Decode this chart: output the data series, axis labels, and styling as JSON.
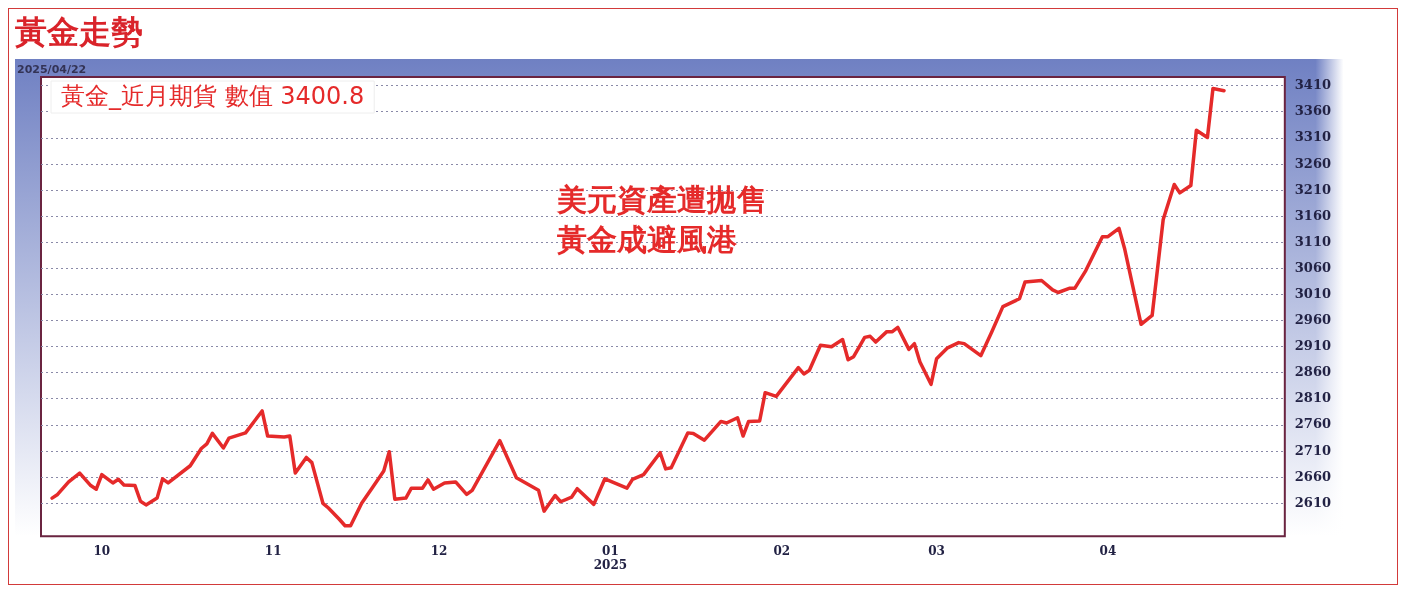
{
  "chart_data": {
    "type": "line",
    "title": "黃金走勢",
    "annotations": [
      "2025/04/22",
      "黃金_近月期貨 數值 3400.8",
      "美元資產遭拋售",
      "黃金成避風港"
    ],
    "x": [
      "2024-09-22",
      "2024-09-23",
      "2024-09-25",
      "2024-09-27",
      "2024-09-29",
      "2024-09-30",
      "2024-10-01",
      "2024-10-03",
      "2024-10-04",
      "2024-10-05",
      "2024-10-07",
      "2024-10-08",
      "2024-10-09",
      "2024-10-11",
      "2024-10-12",
      "2024-10-13",
      "2024-10-17",
      "2024-10-19",
      "2024-10-20",
      "2024-10-21",
      "2024-10-23",
      "2024-10-24",
      "2024-10-27",
      "2024-10-30",
      "2024-10-31",
      "2024-11-03",
      "2024-11-04",
      "2024-11-05",
      "2024-11-07",
      "2024-11-08",
      "2024-11-10",
      "2024-11-11",
      "2024-11-13",
      "2024-11-14",
      "2024-11-15",
      "2024-11-17",
      "2024-11-19",
      "2024-11-21",
      "2024-11-22",
      "2024-11-23",
      "2024-11-25",
      "2024-11-26",
      "2024-11-28",
      "2024-11-29",
      "2024-11-30",
      "2024-12-02",
      "2024-12-04",
      "2024-12-06",
      "2024-12-07",
      "2024-12-12",
      "2024-12-15",
      "2024-12-19",
      "2024-12-20",
      "2024-12-22",
      "2024-12-23",
      "2024-12-25",
      "2024-12-26",
      "2024-12-29",
      "2024-12-31",
      "2025-01-04",
      "2025-01-05",
      "2025-01-07",
      "2025-01-10",
      "2025-01-11",
      "2025-01-12",
      "2025-01-15",
      "2025-01-16",
      "2025-01-18",
      "2025-01-20",
      "2025-01-21",
      "2025-01-22",
      "2025-01-24",
      "2025-01-25",
      "2025-01-26",
      "2025-01-28",
      "2025-01-29",
      "2025-01-31",
      "2025-02-04",
      "2025-02-05",
      "2025-02-06",
      "2025-02-08",
      "2025-02-10",
      "2025-02-12",
      "2025-02-13",
      "2025-02-14",
      "2025-02-16",
      "2025-02-17",
      "2025-02-18",
      "2025-02-20",
      "2025-02-21",
      "2025-02-22",
      "2025-02-24",
      "2025-02-25",
      "2025-02-26",
      "2025-02-28",
      "2025-03-01",
      "2025-03-03",
      "2025-03-05",
      "2025-03-06",
      "2025-03-09",
      "2025-03-11",
      "2025-03-13",
      "2025-03-16",
      "2025-03-17",
      "2025-03-20",
      "2025-03-22",
      "2025-03-23",
      "2025-03-25",
      "2025-03-26",
      "2025-03-28",
      "2025-03-31",
      "2025-04-01",
      "2025-04-03",
      "2025-04-04",
      "2025-04-07",
      "2025-04-09",
      "2025-04-11",
      "2025-04-13",
      "2025-04-14",
      "2025-04-16",
      "2025-04-17",
      "2025-04-19",
      "2025-04-20",
      "2025-04-22"
    ],
    "values": [
      2620,
      2627,
      2651,
      2668,
      2644,
      2637,
      2665,
      2649,
      2656,
      2645,
      2644,
      2614,
      2607,
      2620,
      2657,
      2649,
      2682,
      2715,
      2724,
      2744,
      2716,
      2735,
      2745,
      2787,
      2739,
      2737,
      2739,
      2668,
      2698,
      2688,
      2610,
      2601,
      2579,
      2567,
      2567,
      2610,
      2641,
      2672,
      2709,
      2618,
      2620,
      2639,
      2639,
      2655,
      2637,
      2649,
      2651,
      2627,
      2635,
      2730,
      2659,
      2635,
      2595,
      2625,
      2613,
      2622,
      2638,
      2608,
      2657,
      2639,
      2656,
      2665,
      2707,
      2676,
      2678,
      2745,
      2744,
      2731,
      2755,
      2767,
      2764,
      2774,
      2739,
      2767,
      2768,
      2822,
      2815,
      2870,
      2858,
      2865,
      2913,
      2910,
      2924,
      2885,
      2891,
      2928,
      2930,
      2919,
      2939,
      2939,
      2947,
      2905,
      2916,
      2881,
      2838,
      2887,
      2908,
      2918,
      2916,
      2893,
      2939,
      2987,
      3002,
      3034,
      3037,
      3019,
      3014,
      3022,
      3022,
      3056,
      3121,
      3121,
      3137,
      3099,
      2953,
      2970,
      3154,
      3221,
      3205,
      3219,
      3325,
      3311,
      3405,
      3400.8
    ],
    "color": "#e52a2a",
    "xlim": [
      "2024-09-20",
      "2025-05-03"
    ],
    "xticks": [
      {
        "value": "2024-10-01",
        "label": "10"
      },
      {
        "value": "2024-11-01",
        "label": "11"
      },
      {
        "value": "2024-12-01",
        "label": "12"
      },
      {
        "value": "2025-01-01",
        "label": "01\n2025"
      },
      {
        "value": "2025-02-01",
        "label": "02"
      },
      {
        "value": "2025-03-01",
        "label": "03"
      },
      {
        "value": "2025-04-01",
        "label": "04"
      }
    ],
    "ylim": [
      2547,
      3427
    ],
    "yticks": [
      2610,
      2660,
      2710,
      2760,
      2810,
      2860,
      2910,
      2960,
      3010,
      3060,
      3110,
      3160,
      3210,
      3260,
      3310,
      3360,
      3410
    ],
    "grid": "y"
  }
}
